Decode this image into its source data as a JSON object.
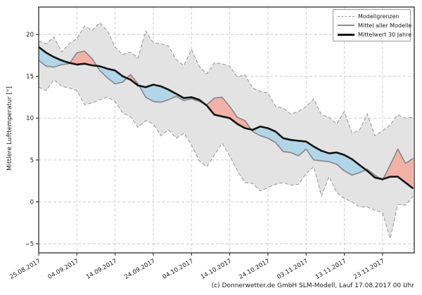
{
  "figure": {
    "y_axis_label": "Mittlere Lufttemperatur [°]",
    "caption": "(c) Donnerwetter.de GmbH SLM-Modell, Lauf 17.08.2017 00 Uhr"
  },
  "legend": {
    "position": "upper right",
    "items": [
      {
        "label": "Modellgrenzen",
        "style": "dashed-gray",
        "line_sample": "dashed-gray-line-icon"
      },
      {
        "label": "Mittel aller Modelle",
        "style": "solid-gray",
        "line_sample": "solid-gray-line-icon"
      },
      {
        "label": "Mittelwert 30 Jahre",
        "style": "thick-black",
        "line_sample": "thick-black-line-icon"
      }
    ]
  },
  "colors": {
    "background": "#ffffff",
    "frame": "#2b2b2b",
    "grid": "#c9c9c9",
    "envelope_fill": "#e3e3e3",
    "bounds_line": "#9c9c9c",
    "model_mean_line": "#8a8a8a",
    "climate_mean_line": "#121212",
    "warm_anomaly_fill": "#f2b1a7",
    "cold_anomaly_fill": "#b2d5e8",
    "tick_text": "#1a1a1a"
  },
  "chart_data": {
    "type": "line",
    "title": "",
    "xlabel": "",
    "ylabel": "Mittlere Lufttemperatur [°]",
    "ylim": [
      -6.1,
      23.3
    ],
    "yticks": [
      -5,
      0,
      5,
      10,
      15,
      20
    ],
    "grid": true,
    "legend_position": "upper right",
    "x_tick_days": [
      0,
      10,
      20,
      30,
      40,
      50,
      60,
      70,
      80,
      90
    ],
    "x_tick_labels": [
      "25.08.2017",
      "04.09.2017",
      "14.09.2017",
      "24.09.2017",
      "04.10.2017",
      "14.10.2017",
      "24.10.2017",
      "03.11.2017",
      "13.11.2017",
      "23.11.2017"
    ],
    "x_day_span": 98.3,
    "days": [
      0,
      2,
      4,
      6,
      8,
      10,
      12,
      14,
      16,
      18,
      20,
      22,
      24,
      26,
      28,
      30,
      32,
      34,
      36,
      38,
      40,
      42,
      44,
      46,
      48,
      50,
      52,
      54,
      56,
      58,
      60,
      62,
      64,
      66,
      68,
      70,
      72,
      74,
      76,
      78,
      80,
      82,
      84,
      86,
      88,
      90,
      92,
      94,
      96,
      98
    ],
    "series": [
      {
        "name": "Modellgrenzen (obere Grenze)",
        "role": "upper_bound",
        "values": [
          19.2,
          18.9,
          19.7,
          17.9,
          18.9,
          19.5,
          21.0,
          20.5,
          21.4,
          20.4,
          18.5,
          17.6,
          17.9,
          17.2,
          20.4,
          19.0,
          18.9,
          18.6,
          17.0,
          16.3,
          18.2,
          16.2,
          15.3,
          16.6,
          16.5,
          16.2,
          14.9,
          15.2,
          13.6,
          13.2,
          13.0,
          11.4,
          11.2,
          10.5,
          10.8,
          11.4,
          12.3,
          10.4,
          10.1,
          9.3,
          10.8,
          8.2,
          8.6,
          10.5,
          7.9,
          8.5,
          9.2,
          10.4,
          10.0,
          10.1
        ]
      },
      {
        "name": "Modellgrenzen (untere Grenze)",
        "role": "lower_bound",
        "values": [
          13.7,
          13.3,
          14.6,
          13.8,
          13.6,
          13.3,
          11.6,
          11.8,
          12.2,
          12.5,
          12.0,
          10.6,
          10.2,
          8.9,
          9.7,
          9.3,
          7.9,
          8.6,
          7.6,
          8.2,
          6.8,
          4.9,
          4.2,
          5.6,
          7.0,
          5.5,
          3.7,
          2.3,
          2.2,
          1.3,
          1.7,
          2.1,
          2.3,
          2.0,
          2.1,
          3.4,
          4.2,
          0.7,
          3.0,
          1.1,
          0.4,
          0.0,
          -0.6,
          -0.6,
          -1.0,
          -1.3,
          -4.4,
          -0.3,
          -0.4,
          0.7
        ]
      },
      {
        "name": "Mittel aller Modelle",
        "role": "model_mean",
        "values": [
          16.9,
          16.2,
          16.1,
          16.4,
          16.5,
          17.8,
          18.0,
          17.1,
          15.7,
          14.8,
          14.1,
          14.3,
          15.2,
          14.1,
          12.5,
          12.0,
          11.9,
          12.2,
          12.6,
          12.1,
          12.3,
          12.0,
          11.6,
          12.4,
          12.5,
          11.4,
          10.1,
          9.7,
          8.4,
          7.9,
          7.6,
          7.1,
          6.0,
          5.9,
          5.5,
          6.3,
          5.0,
          4.9,
          4.8,
          4.5,
          3.7,
          3.2,
          3.5,
          3.9,
          3.2,
          2.6,
          4.4,
          6.3,
          4.6,
          5.2
        ]
      },
      {
        "name": "Mittelwert 30 Jahre",
        "role": "climate_mean",
        "values": [
          18.5,
          17.8,
          17.3,
          16.9,
          16.6,
          16.4,
          16.5,
          16.3,
          16.2,
          15.9,
          15.7,
          15.0,
          14.6,
          13.9,
          13.7,
          14.0,
          13.8,
          13.4,
          12.9,
          12.4,
          12.5,
          12.2,
          11.5,
          10.4,
          10.2,
          10.0,
          9.3,
          8.8,
          8.6,
          9.0,
          8.8,
          8.4,
          7.6,
          7.4,
          7.3,
          7.2,
          6.6,
          6.1,
          5.8,
          5.9,
          5.6,
          5.1,
          4.4,
          3.7,
          2.9,
          2.7,
          3.0,
          3.0,
          2.3,
          1.6
        ]
      }
    ]
  }
}
